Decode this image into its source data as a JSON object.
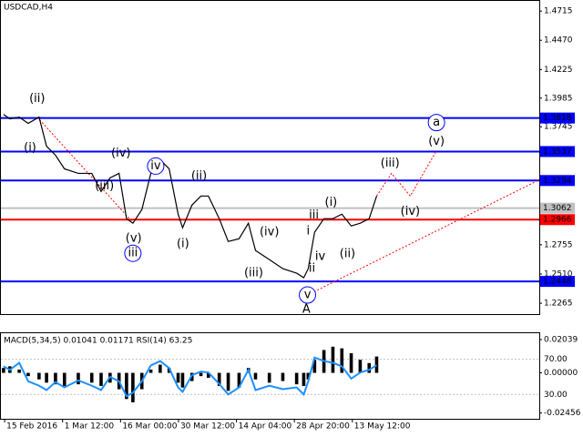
{
  "chart_data": [
    {
      "type": "line",
      "title": "USDCAD,H4",
      "color": "#000000",
      "x": [
        0.7,
        2.4,
        4.9,
        7.3,
        10.2,
        12.2,
        14.6,
        17,
        20.7,
        24.3,
        26.8,
        29.2,
        31.6,
        33.6,
        35.3,
        37.7,
        40.1,
        42.6,
        45,
        47.4,
        48.6,
        51.1,
        53.5,
        55.5,
        58.4,
        60.8,
        63.7,
        66.2,
        68.1,
        71.8,
        75.4,
        79.1,
        81,
        82.2,
        83.9,
        86.4,
        88.8,
        91.2,
        93.7,
        96.1,
        98.5,
        100.5
      ],
      "values": [
        1.3849,
        1.3811,
        1.3826,
        1.3773,
        1.3826,
        1.3582,
        1.3506,
        1.3392,
        1.3354,
        1.3354,
        1.3202,
        1.3316,
        1.3354,
        1.2974,
        1.2936,
        1.305,
        1.3354,
        1.3468,
        1.3392,
        1.3012,
        1.2898,
        1.3088,
        1.3164,
        1.3164,
        1.2974,
        1.2783,
        1.2806,
        1.2936,
        1.2707,
        1.2631,
        1.2555,
        1.2517,
        1.2479,
        1.2555,
        1.286,
        1.2974,
        1.2974,
        1.3012,
        1.2913,
        1.2936,
        1.2974,
        1.3164
      ],
      "xlim": [
        0,
        144
      ],
      "ylim": [
        1.2174,
        1.48
      ],
      "yticks": [
        1.4715,
        {
          "value": 1.447,
          "label": "1.4470"
        },
        1.4225,
        1.3985,
        1.3745,
        1.2755,
        {
          "value": 1.251,
          "label": "1.2510"
        },
        1.2265
      ],
      "levels": [
        {
          "value": 1.3818,
          "color": "#0000ff"
        },
        {
          "value": 1.3537,
          "color": "#0000ff"
        },
        {
          "value": 1.3294,
          "color": "#0000ff"
        },
        {
          "value": 1.3062,
          "color": "#c0c0c0"
        },
        {
          "value": 1.2966,
          "color": "#ff0000"
        },
        {
          "value": 1.2448,
          "color": "#0000ff"
        }
      ],
      "annotations": [
        {
          "text": "(ii)",
          "x": 9.7,
          "y": 1.3978,
          "color": "#ff0000"
        },
        {
          "text": "(i)",
          "x": 7.8,
          "y": 1.3567,
          "color": "#ff0000"
        },
        {
          "text": "(iv)",
          "x": 32.1,
          "y": 1.3521,
          "color": "#ff0000"
        },
        {
          "text": "iv",
          "x": 41.4,
          "y": 1.3415,
          "color": "#0000ff",
          "circled": true
        },
        {
          "text": "(iii)",
          "x": 27.7,
          "y": 1.3248,
          "color": "#ff0000"
        },
        {
          "text": "(ii)",
          "x": 53,
          "y": 1.3331,
          "color": "#ff0000"
        },
        {
          "text": "(v)",
          "x": 35.5,
          "y": 1.2806,
          "color": "#ff0000"
        },
        {
          "text": "iii",
          "x": 35.3,
          "y": 1.2684,
          "color": "#0000ff",
          "circled": true
        },
        {
          "text": "(i)",
          "x": 48.7,
          "y": 1.276,
          "color": "#ff0000"
        },
        {
          "text": "(iv)",
          "x": 71.8,
          "y": 1.286,
          "color": "#ff0000"
        },
        {
          "text": "(iii)",
          "x": 67.6,
          "y": 1.2517,
          "color": "#ff0000"
        },
        {
          "text": "v",
          "x": 82,
          "y": 1.2334,
          "color": "#0000ff",
          "circled": true
        },
        {
          "text": "A",
          "x": 81.7,
          "y": 1.2213,
          "color": "#ff0000"
        },
        {
          "text": "iii",
          "x": 83.7,
          "y": 1.3004,
          "color": "#808080"
        },
        {
          "text": "i",
          "x": 82.2,
          "y": 1.2867,
          "color": "#808080"
        },
        {
          "text": "iv",
          "x": 85.4,
          "y": 1.2654,
          "color": "#808080"
        },
        {
          "text": "ii",
          "x": 83.2,
          "y": 1.2555,
          "color": "#808080"
        },
        {
          "text": "(i)",
          "x": 88.3,
          "y": 1.3111,
          "color": "#ff0000"
        },
        {
          "text": "(ii)",
          "x": 92.7,
          "y": 1.2677,
          "color": "#ff0000"
        },
        {
          "text": "(iii)",
          "x": 104.1,
          "y": 1.3438,
          "color": "#ff0000"
        },
        {
          "text": "(iv)",
          "x": 109.5,
          "y": 1.3034,
          "color": "#ff0000"
        },
        {
          "text": "(v)",
          "x": 116.5,
          "y": 1.362,
          "color": "#ff0000"
        },
        {
          "text": "a",
          "x": 116.5,
          "y": 1.378,
          "color": "#0000ff",
          "circled": true
        }
      ],
      "lines": [
        {
          "x": [
            100.5,
            104.5,
            109.5,
            116.5
          ],
          "y": [
            1.3164,
            1.3354,
            1.3164,
            1.3544
          ],
          "color": "#ff0000"
        },
        {
          "x": [
            82,
            144
          ],
          "y": [
            1.2334,
            1.33
          ],
          "color": "#ff0000"
        },
        {
          "x": [
            9.7,
            35.5
          ],
          "y": [
            1.3826,
            1.2936
          ],
          "color": "#ff0000"
        }
      ]
    },
    {
      "type": "macd",
      "title": "MACD(5,34,5) 0.01041 0.01171 RSI(14) 63.25",
      "color": "#000000",
      "x": [
        0.7,
        2.4,
        4.9,
        7.3,
        10.2,
        12.2,
        14.6,
        17,
        20.7,
        24.3,
        26.8,
        29.2,
        31.6,
        33.6,
        35.3,
        37.7,
        40.1,
        42.6,
        45,
        47.4,
        48.6,
        51.1,
        53.5,
        55.5,
        58.4,
        60.8,
        63.7,
        66.2,
        68.1,
        71.8,
        75.4,
        79.1,
        81,
        82.2,
        83.9,
        86.4,
        88.8,
        91.2,
        93.7,
        96.1,
        98.5,
        100.5
      ],
      "values": [
        0.003,
        0.004,
        0.002,
        -0.002,
        -0.004,
        -0.006,
        -0.007,
        -0.008,
        -0.007,
        -0.006,
        -0.008,
        -0.006,
        -0.01,
        -0.016,
        -0.018,
        -0.01,
        0.002,
        0.005,
        0.003,
        -0.006,
        -0.009,
        -0.005,
        -0.002,
        -0.003,
        -0.008,
        -0.011,
        -0.009,
        0.003,
        -0.004,
        -0.006,
        -0.005,
        -0.007,
        -0.008,
        -0.004,
        0.008,
        0.014,
        0.016,
        0.015,
        0.012,
        0.008,
        0.006,
        0.01
      ],
      "series": [
        {
          "axis": "y2",
          "color": "#1e90ff",
          "values": [
            62,
            58,
            66,
            45,
            40,
            35,
            44,
            38,
            46,
            40,
            35,
            50,
            45,
            28,
            32,
            45,
            63,
            68,
            60,
            38,
            33,
            52,
            56,
            55,
            42,
            30,
            38,
            58,
            35,
            40,
            36,
            38,
            30,
            45,
            72,
            68,
            66,
            62,
            48,
            55,
            58,
            63.25
          ]
        }
      ],
      "xlim": [
        0,
        144
      ],
      "ylim": [
        -0.0281,
        0.02426
      ],
      "yticks": [
        0.02039,
        {
          "value": 0,
          "label": "0.00000"
        },
        -0.02456
      ],
      "y2lim": [
        2.3,
        99.7
      ],
      "y2ticks": [
        {
          "value": 70,
          "label": "70.00"
        },
        {
          "value": 30,
          "label": "30.00"
        }
      ],
      "xticks": [
        {
          "value": 1,
          "label": "15 Feb 2016"
        },
        {
          "value": 16.5,
          "label": "1 Mar 12:00"
        },
        {
          "value": 32,
          "label": "16 Mar 00:00"
        },
        {
          "value": 47.5,
          "label": "30 Mar 12:00"
        },
        {
          "value": 63,
          "label": "14 Apr 04:00"
        },
        {
          "value": 78.5,
          "label": "28 Apr 20:00"
        },
        {
          "value": 94,
          "label": "13 May 12:00"
        }
      ]
    }
  ]
}
